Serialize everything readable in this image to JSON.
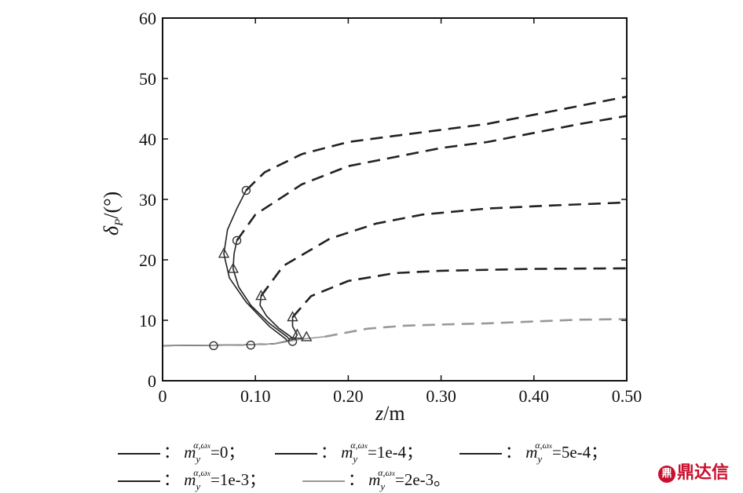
{
  "chart_data": {
    "type": "line",
    "xlabel_var": "z",
    "xlabel_unit": "m",
    "ylabel_var": "δ",
    "ylabel_sub": "P",
    "ylabel_unit": "/(°)",
    "xlim": [
      0,
      0.5
    ],
    "ylim": [
      0,
      60
    ],
    "x_ticks": [
      "0",
      "0.10",
      "0.20",
      "0.30",
      "0.40",
      "0.50"
    ],
    "y_ticks": [
      "0",
      "10",
      "20",
      "30",
      "40",
      "50",
      "60"
    ],
    "grid": false,
    "legend_position": "bottom",
    "series": [
      {
        "name_value": "=0；",
        "color": "#222222",
        "solid": [
          [
            0.0,
            5.8
          ],
          [
            0.08,
            5.9
          ],
          [
            0.12,
            6.1
          ],
          [
            0.135,
            6.5
          ],
          [
            0.132,
            7.0
          ],
          [
            0.115,
            9.0
          ],
          [
            0.09,
            13.0
          ],
          [
            0.072,
            17.0
          ],
          [
            0.066,
            21.0
          ],
          [
            0.07,
            25.0
          ],
          [
            0.08,
            28.5
          ],
          [
            0.09,
            31.5
          ]
        ],
        "dashed": [
          [
            0.09,
            31.5
          ],
          [
            0.11,
            34.5
          ],
          [
            0.15,
            37.5
          ],
          [
            0.2,
            39.5
          ],
          [
            0.25,
            40.5
          ],
          [
            0.3,
            41.5
          ],
          [
            0.35,
            42.5
          ],
          [
            0.4,
            44.0
          ],
          [
            0.45,
            45.5
          ],
          [
            0.5,
            47.0
          ]
        ]
      },
      {
        "name_value": "=1e-4；",
        "color": "#222222",
        "solid": [
          [
            0.0,
            5.8
          ],
          [
            0.08,
            5.9
          ],
          [
            0.12,
            6.1
          ],
          [
            0.138,
            6.6
          ],
          [
            0.134,
            7.3
          ],
          [
            0.115,
            9.5
          ],
          [
            0.095,
            12.5
          ],
          [
            0.082,
            15.5
          ],
          [
            0.076,
            18.5
          ],
          [
            0.077,
            21.0
          ],
          [
            0.08,
            23.2
          ]
        ],
        "dashed": [
          [
            0.08,
            23.2
          ],
          [
            0.1,
            27.5
          ],
          [
            0.15,
            32.5
          ],
          [
            0.2,
            35.5
          ],
          [
            0.25,
            37.0
          ],
          [
            0.3,
            38.5
          ],
          [
            0.35,
            39.5
          ],
          [
            0.4,
            41.0
          ],
          [
            0.45,
            42.5
          ],
          [
            0.5,
            43.8
          ]
        ]
      },
      {
        "name_value": "=5e-4；",
        "color": "#222222",
        "solid": [
          [
            0.0,
            5.8
          ],
          [
            0.08,
            5.9
          ],
          [
            0.12,
            6.1
          ],
          [
            0.14,
            6.7
          ],
          [
            0.138,
            7.3
          ],
          [
            0.125,
            8.7
          ],
          [
            0.112,
            10.7
          ],
          [
            0.105,
            12.5
          ],
          [
            0.106,
            14.0
          ]
        ],
        "dashed": [
          [
            0.106,
            14.0
          ],
          [
            0.13,
            19.0
          ],
          [
            0.18,
            23.5
          ],
          [
            0.23,
            26.0
          ],
          [
            0.28,
            27.5
          ],
          [
            0.35,
            28.5
          ],
          [
            0.42,
            29.0
          ],
          [
            0.5,
            29.5
          ]
        ]
      },
      {
        "name_value": "=1e-3；",
        "color": "#222222",
        "solid": [
          [
            0.0,
            5.8
          ],
          [
            0.08,
            5.9
          ],
          [
            0.12,
            6.1
          ],
          [
            0.142,
            6.8
          ],
          [
            0.145,
            7.6
          ],
          [
            0.14,
            9.0
          ],
          [
            0.14,
            10.5
          ]
        ],
        "dashed": [
          [
            0.14,
            10.5
          ],
          [
            0.16,
            14.0
          ],
          [
            0.2,
            16.5
          ],
          [
            0.25,
            17.8
          ],
          [
            0.3,
            18.2
          ],
          [
            0.4,
            18.5
          ],
          [
            0.5,
            18.6
          ]
        ]
      },
      {
        "name_value": "=2e-3。",
        "color": "#999999",
        "solid": [
          [
            0.0,
            5.8
          ],
          [
            0.08,
            5.9
          ],
          [
            0.12,
            6.1
          ],
          [
            0.15,
            6.9
          ],
          [
            0.175,
            7.3
          ]
        ],
        "dashed": [
          [
            0.175,
            7.3
          ],
          [
            0.22,
            8.6
          ],
          [
            0.26,
            9.1
          ],
          [
            0.3,
            9.3
          ],
          [
            0.35,
            9.5
          ],
          [
            0.4,
            9.8
          ],
          [
            0.45,
            10.1
          ],
          [
            0.5,
            10.2
          ]
        ]
      }
    ],
    "markers": [
      {
        "type": "circle",
        "x": 0.09,
        "y": 31.5
      },
      {
        "type": "circle",
        "x": 0.08,
        "y": 23.2
      },
      {
        "type": "circle",
        "x": 0.055,
        "y": 5.8
      },
      {
        "type": "circle",
        "x": 0.095,
        "y": 5.9
      },
      {
        "type": "circle",
        "x": 0.14,
        "y": 6.5
      },
      {
        "type": "triangle",
        "x": 0.066,
        "y": 21.0
      },
      {
        "type": "triangle",
        "x": 0.076,
        "y": 18.5
      },
      {
        "type": "triangle",
        "x": 0.106,
        "y": 14.0
      },
      {
        "type": "triangle",
        "x": 0.14,
        "y": 10.5
      },
      {
        "type": "triangle",
        "x": 0.145,
        "y": 7.6
      },
      {
        "type": "triangle",
        "x": 0.155,
        "y": 7.2
      }
    ]
  },
  "legend": {
    "separator": "：",
    "m_symbol": "m",
    "m_superscript": "α,ω",
    "m_super_sub": "x",
    "m_subscript": "y"
  },
  "watermark": {
    "icon_text": "鼎",
    "text": "鼎达信"
  }
}
